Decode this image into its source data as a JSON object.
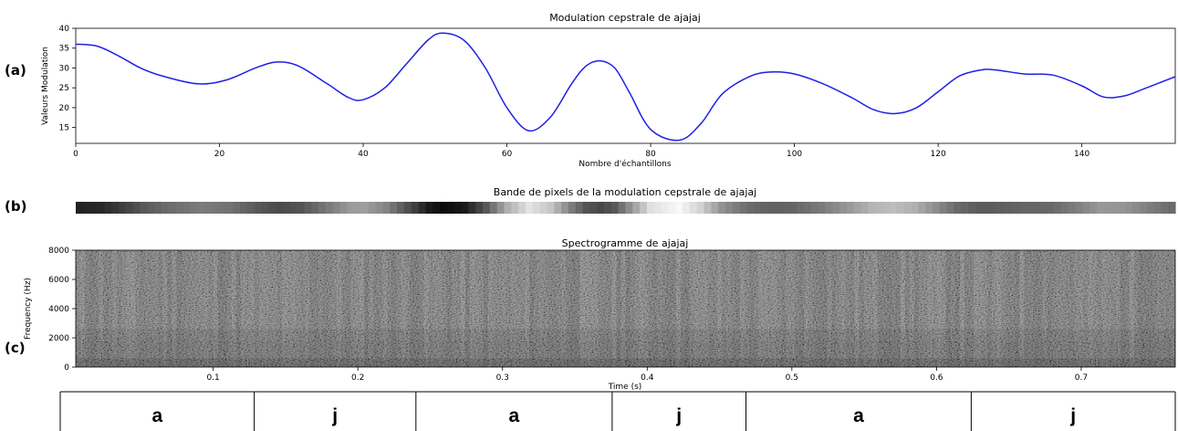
{
  "panels": {
    "a": "(a)",
    "b": "(b)",
    "c": "(c)"
  },
  "chart_data": [
    {
      "type": "line",
      "title": "Modulation cepstrale de ajajaj",
      "xlabel": "Nombre d'échantillons",
      "ylabel": "Valeurs Modulation",
      "xlim": [
        0,
        153
      ],
      "ylim": [
        11,
        40
      ],
      "xticks": [
        0,
        20,
        40,
        60,
        80,
        100,
        120,
        140
      ],
      "yticks": [
        15,
        20,
        25,
        30,
        35,
        40
      ],
      "line_color": "#1f1fe8",
      "x": [
        0,
        3,
        6,
        9,
        12,
        17,
        21,
        25,
        28,
        31,
        35,
        38,
        40,
        43,
        46,
        49,
        51,
        54,
        57,
        60,
        63,
        66,
        69,
        71,
        73,
        75,
        77,
        80,
        84,
        87,
        90,
        94,
        97,
        100,
        104,
        108,
        111,
        114,
        117,
        120,
        123,
        126,
        128,
        132,
        136,
        140,
        143,
        146,
        149,
        153
      ],
      "y": [
        36,
        35.5,
        33,
        30,
        28,
        26,
        27,
        30,
        31.5,
        30.5,
        26,
        22.5,
        22,
        25,
        31,
        37,
        38.8,
        37,
        30,
        20,
        14.2,
        17.5,
        26,
        30.5,
        31.8,
        30,
        24,
        14.5,
        11.8,
        16,
        23.5,
        28,
        29,
        28.5,
        26,
        22.5,
        19.5,
        18.5,
        20,
        24,
        28,
        29.5,
        29.5,
        28.5,
        28.2,
        25.5,
        22.7,
        23,
        25,
        27.8
      ]
    },
    {
      "type": "heatmap",
      "title": "Bande de pixels de la modulation cepstrale de ajajaj",
      "colormap": "gray",
      "note_range": [
        11,
        40
      ]
    },
    {
      "type": "heatmap",
      "title": "Spectrogramme de ajajaj",
      "xlabel": "Time (s)",
      "ylabel": "Frequency (Hz)",
      "xlim": [
        0.005,
        0.765
      ],
      "ylim": [
        0,
        8000
      ],
      "xticks": [
        0.1,
        0.2,
        0.3,
        0.4,
        0.5,
        0.6,
        0.7
      ],
      "yticks": [
        0,
        2000,
        4000,
        6000,
        8000
      ],
      "colormap": "gray"
    },
    {
      "type": "table",
      "segments": [
        {
          "label": "a",
          "start": 0,
          "end": 0.174
        },
        {
          "label": "j",
          "start": 0.174,
          "end": 0.319
        },
        {
          "label": "a",
          "start": 0.319,
          "end": 0.495
        },
        {
          "label": "j",
          "start": 0.495,
          "end": 0.615
        },
        {
          "label": "a",
          "start": 0.615,
          "end": 0.817
        },
        {
          "label": "j",
          "start": 0.817,
          "end": 1
        }
      ]
    }
  ]
}
